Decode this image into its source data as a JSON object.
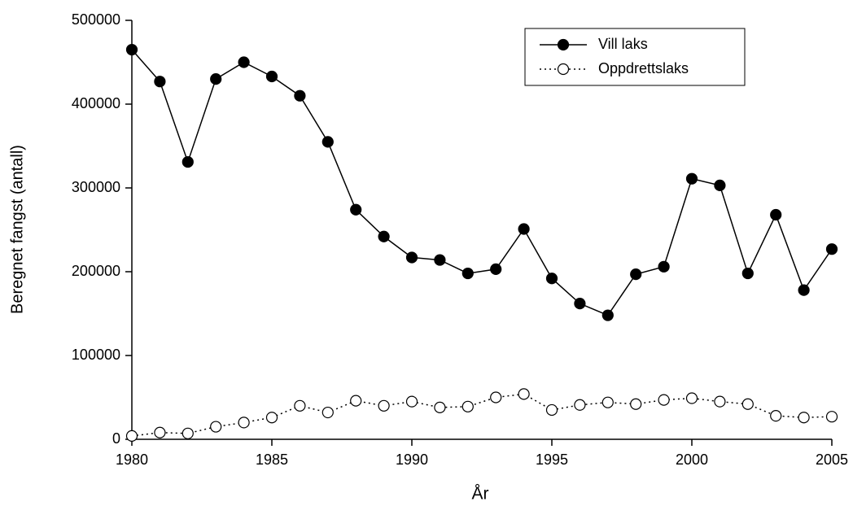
{
  "chart_data": {
    "type": "line",
    "x_label": "År",
    "y_label": "Beregnet fangst (antall)",
    "x": [
      1980,
      1981,
      1982,
      1983,
      1984,
      1985,
      1986,
      1987,
      1988,
      1989,
      1990,
      1991,
      1992,
      1993,
      1994,
      1995,
      1996,
      1997,
      1998,
      1999,
      2000,
      2001,
      2002,
      2003,
      2004,
      2005
    ],
    "series": [
      {
        "name": "Vill laks",
        "color": "#000000",
        "line_style": "solid",
        "marker": "filled",
        "values": [
          465000,
          427000,
          331000,
          430000,
          450000,
          433000,
          410000,
          355000,
          274000,
          242000,
          217000,
          214000,
          198000,
          203000,
          251000,
          192000,
          162000,
          148000,
          197000,
          206000,
          311000,
          303000,
          198000,
          268000,
          178000,
          227000
        ]
      },
      {
        "name": "Oppdrettslaks",
        "color": "#000000",
        "line_style": "dotted",
        "marker": "open",
        "values": [
          4000,
          8000,
          7000,
          15000,
          20000,
          26000,
          40000,
          32000,
          46000,
          40000,
          45000,
          38000,
          39000,
          50000,
          54000,
          35000,
          41000,
          44000,
          42000,
          47000,
          49000,
          45000,
          42000,
          28000,
          26000,
          27000
        ]
      }
    ],
    "xlim": [
      1980,
      2005
    ],
    "xticks": [
      1980,
      1985,
      1990,
      1995,
      2000,
      2005
    ],
    "ylim": [
      0,
      500000
    ],
    "yticks": [
      0,
      100000,
      200000,
      300000,
      400000,
      500000
    ],
    "legend": "upper-right"
  }
}
